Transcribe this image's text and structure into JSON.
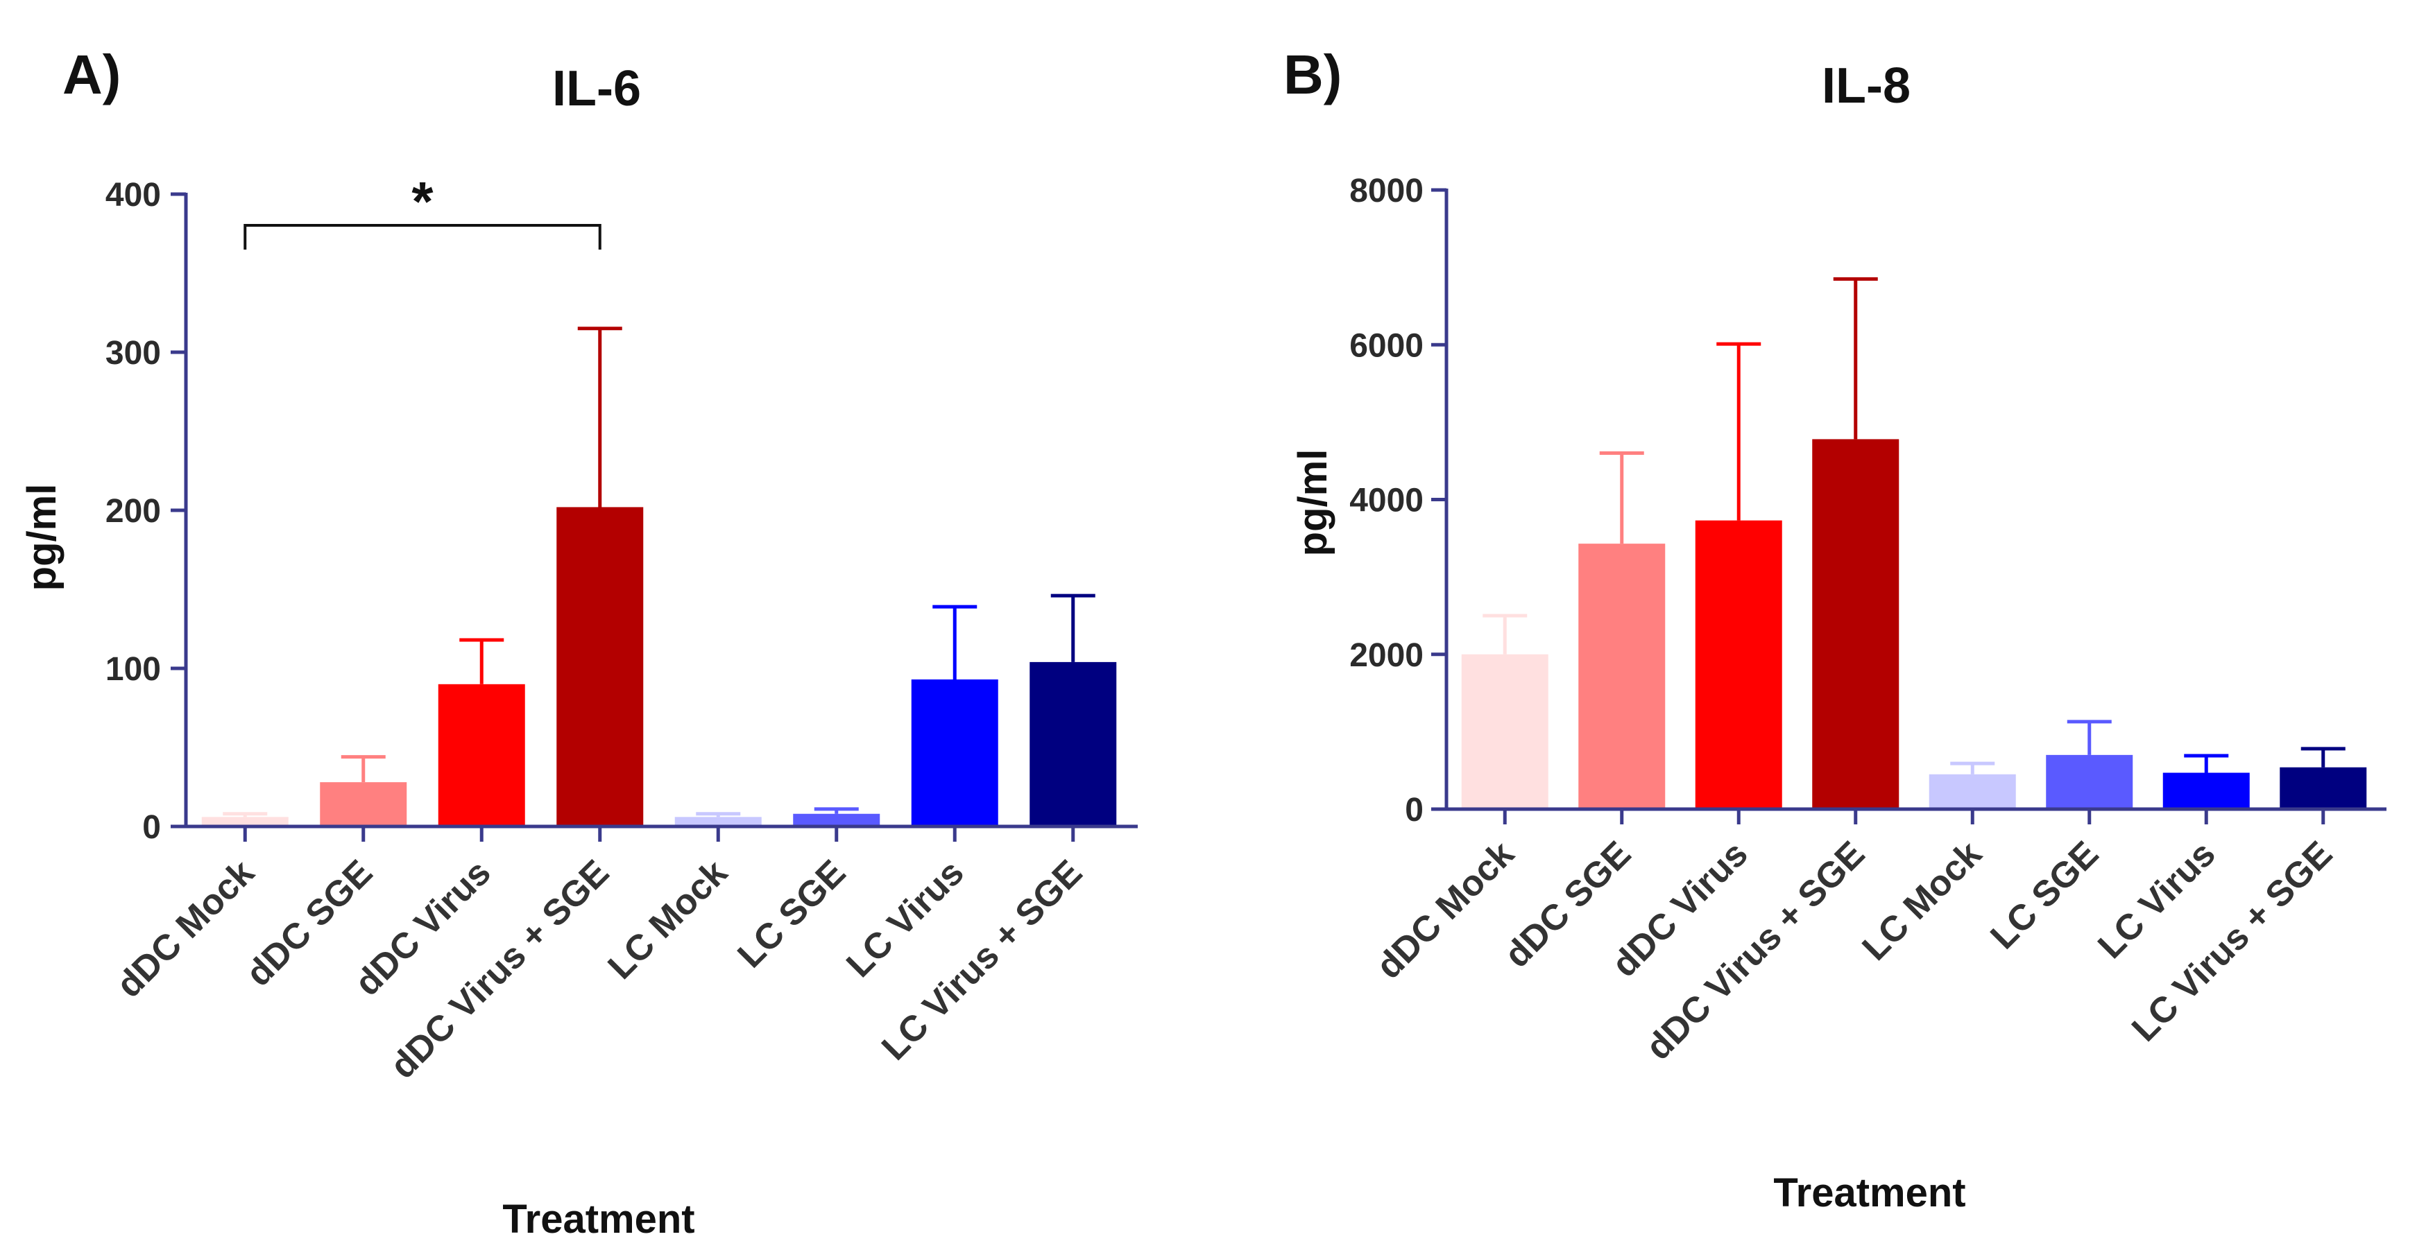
{
  "panels": [
    {
      "letter": "A)"
    },
    {
      "letter": "B)"
    }
  ],
  "chart_data": [
    {
      "type": "bar",
      "title": "IL-6",
      "xlabel": "Treatment",
      "ylabel": "pg/ml",
      "ylim": [
        0,
        400
      ],
      "yticks": [
        "0",
        "100",
        "200",
        "300",
        "400"
      ],
      "categories": [
        "dDC Mock",
        "dDC SGE",
        "dDC Virus",
        "dDC Virus + SGE",
        "LC Mock",
        "LC SGE",
        "LC Virus",
        "LC Virus + SGE"
      ],
      "values": [
        6,
        28,
        90,
        202,
        6,
        8,
        93,
        104
      ],
      "error": [
        2,
        16,
        28,
        113,
        2,
        3,
        46,
        42
      ],
      "colors": [
        "#ffe0e0",
        "#ff8080",
        "#ff0000",
        "#b30000",
        "#c8c8ff",
        "#5a5aff",
        "#0000ff",
        "#000080"
      ],
      "annotation": {
        "text": "*",
        "from": 0,
        "to": 3
      }
    },
    {
      "type": "bar",
      "title": "IL-8",
      "xlabel": "Treatment",
      "ylabel": "pg/ml",
      "ylim": [
        0,
        8000
      ],
      "yticks": [
        "0",
        "2000",
        "4000",
        "6000",
        "8000"
      ],
      "categories": [
        "dDC Mock",
        "dDC SGE",
        "dDC Virus",
        "dDC Virus + SGE",
        "LC Mock",
        "LC SGE",
        "LC Virus",
        "LC Virus + SGE"
      ],
      "values": [
        2000,
        3430,
        3730,
        4780,
        450,
        700,
        470,
        540
      ],
      "error": [
        500,
        1170,
        2280,
        2070,
        140,
        430,
        220,
        240
      ],
      "colors": [
        "#ffe0e0",
        "#ff8080",
        "#ff0000",
        "#b30000",
        "#c8c8ff",
        "#5a5aff",
        "#0000ff",
        "#000080"
      ]
    }
  ]
}
